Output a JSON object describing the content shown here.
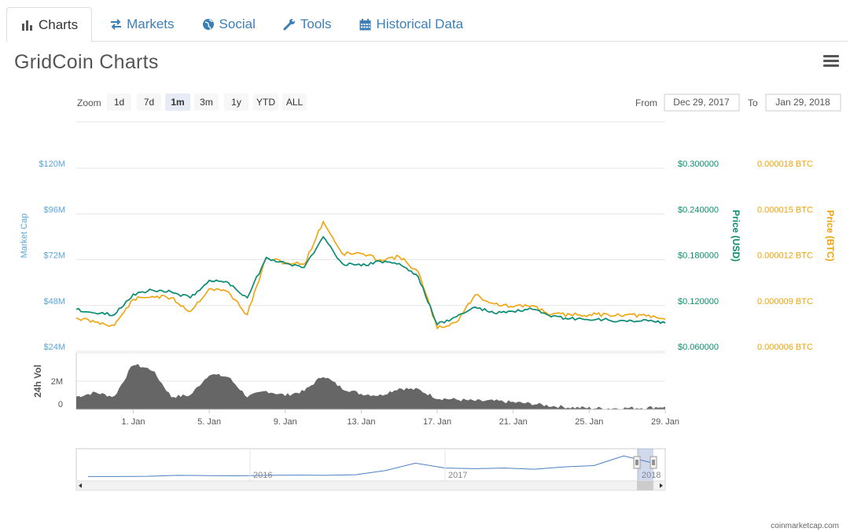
{
  "tabs": [
    {
      "label": "Charts",
      "icon": "bar-chart-icon",
      "active": true
    },
    {
      "label": "Markets",
      "icon": "exchange-arrows-icon",
      "active": false
    },
    {
      "label": "Social",
      "icon": "globe-icon",
      "active": false
    },
    {
      "label": "Tools",
      "icon": "wrench-icon",
      "active": false
    },
    {
      "label": "Historical Data",
      "icon": "calendar-icon",
      "active": false
    }
  ],
  "title": "GridCoin Charts",
  "menu_icon": "hamburger-menu-icon",
  "zoom": {
    "label": "Zoom",
    "buttons": [
      "1d",
      "7d",
      "1m",
      "3m",
      "1y",
      "YTD",
      "ALL"
    ],
    "selected": "1m"
  },
  "range": {
    "from_label": "From",
    "from_value": "Dec 29, 2017",
    "to_label": "To",
    "to_value": "Jan 29, 2018"
  },
  "credit": "coinmarketcap.com",
  "colors": {
    "market_cap": "#7cb5ec",
    "price_usd": "#0a8c6e",
    "price_btc": "#f0a30a",
    "volume": "#666666",
    "market_cap_axis": "#5aa6dc",
    "usd_axis": "#0a8c6e",
    "btc_axis": "#f0a30a"
  },
  "chart_data": {
    "type": "line",
    "title": "",
    "x_ticks": [
      "1. Jan",
      "5. Jan",
      "9. Jan",
      "13. Jan",
      "17. Jan",
      "21. Jan",
      "25. Jan",
      "29. Jan"
    ],
    "x_start": "2017-12-29",
    "x_end": "2018-01-29",
    "y_axes": {
      "market_cap": {
        "label": "Market Cap",
        "ticks": [
          "$24M",
          "$48M",
          "$72M",
          "$96M",
          "$120M"
        ],
        "range_millions": [
          24,
          120
        ]
      },
      "price_usd": {
        "label": "Price (USD)",
        "ticks": [
          "$0.060000",
          "$0.120000",
          "$0.180000",
          "$0.240000",
          "$0.300000"
        ],
        "range": [
          0.06,
          0.3
        ]
      },
      "price_btc": {
        "label": "Price (BTC)",
        "ticks": [
          "0.000006 BTC",
          "0.000009 BTC",
          "0.000012 BTC",
          "0.000015 BTC",
          "0.000018 BTC"
        ],
        "range": [
          6e-06,
          1.8e-05
        ]
      },
      "volume": {
        "label": "24h Vol",
        "ticks": [
          "0",
          "2M"
        ],
        "range_millions": [
          0,
          4
        ]
      }
    },
    "series": [
      {
        "name": "Market Cap",
        "unit": "USD millions",
        "points": [
          [
            "2017-12-29",
            46
          ],
          [
            "2017-12-30",
            44
          ],
          [
            "2017-12-31",
            43
          ],
          [
            "2018-01-01",
            54
          ],
          [
            "2018-01-02",
            56
          ],
          [
            "2018-01-03",
            55
          ],
          [
            "2018-01-04",
            52
          ],
          [
            "2018-01-05",
            61
          ],
          [
            "2018-01-06",
            60
          ],
          [
            "2018-01-07",
            52
          ],
          [
            "2018-01-08",
            73
          ],
          [
            "2018-01-09",
            70
          ],
          [
            "2018-01-10",
            68
          ],
          [
            "2018-01-11",
            84
          ],
          [
            "2018-01-12",
            70
          ],
          [
            "2018-01-13",
            69
          ],
          [
            "2018-01-14",
            71
          ],
          [
            "2018-01-15",
            70
          ],
          [
            "2018-01-16",
            63
          ],
          [
            "2018-01-17",
            38
          ],
          [
            "2018-01-18",
            42
          ],
          [
            "2018-01-19",
            47
          ],
          [
            "2018-01-20",
            44
          ],
          [
            "2018-01-21",
            45
          ],
          [
            "2018-01-22",
            46
          ],
          [
            "2018-01-23",
            42
          ],
          [
            "2018-01-24",
            41
          ],
          [
            "2018-01-25",
            40.5
          ],
          [
            "2018-01-26",
            40.5
          ],
          [
            "2018-01-27",
            39.5
          ],
          [
            "2018-01-28",
            40.5
          ],
          [
            "2018-01-29",
            39
          ]
        ]
      },
      {
        "name": "Price (USD)",
        "unit": "USD",
        "points": [
          [
            "2017-12-29",
            0.115
          ],
          [
            "2017-12-30",
            0.11
          ],
          [
            "2017-12-31",
            0.108
          ],
          [
            "2018-01-01",
            0.135
          ],
          [
            "2018-01-02",
            0.14
          ],
          [
            "2018-01-03",
            0.138
          ],
          [
            "2018-01-04",
            0.13
          ],
          [
            "2018-01-05",
            0.153
          ],
          [
            "2018-01-06",
            0.15
          ],
          [
            "2018-01-07",
            0.13
          ],
          [
            "2018-01-08",
            0.183
          ],
          [
            "2018-01-09",
            0.175
          ],
          [
            "2018-01-10",
            0.17
          ],
          [
            "2018-01-11",
            0.21
          ],
          [
            "2018-01-12",
            0.175
          ],
          [
            "2018-01-13",
            0.172
          ],
          [
            "2018-01-14",
            0.178
          ],
          [
            "2018-01-15",
            0.175
          ],
          [
            "2018-01-16",
            0.158
          ],
          [
            "2018-01-17",
            0.095
          ],
          [
            "2018-01-18",
            0.105
          ],
          [
            "2018-01-19",
            0.118
          ],
          [
            "2018-01-20",
            0.11
          ],
          [
            "2018-01-21",
            0.112
          ],
          [
            "2018-01-22",
            0.115
          ],
          [
            "2018-01-23",
            0.105
          ],
          [
            "2018-01-24",
            0.103
          ],
          [
            "2018-01-25",
            0.101
          ],
          [
            "2018-01-26",
            0.101
          ],
          [
            "2018-01-27",
            0.099
          ],
          [
            "2018-01-28",
            0.101
          ],
          [
            "2018-01-29",
            0.097
          ]
        ]
      },
      {
        "name": "Price (BTC)",
        "unit": "BTC",
        "points": [
          [
            "2017-12-29",
            8.2e-06
          ],
          [
            "2017-12-30",
            7.9e-06
          ],
          [
            "2017-12-31",
            7.7e-06
          ],
          [
            "2018-01-01",
            9.4e-06
          ],
          [
            "2018-01-02",
            9.6e-06
          ],
          [
            "2018-01-03",
            9.5e-06
          ],
          [
            "2018-01-04",
            8.6e-06
          ],
          [
            "2018-01-05",
            1.01e-05
          ],
          [
            "2018-01-06",
            9.9e-06
          ],
          [
            "2018-01-07",
            8.4e-06
          ],
          [
            "2018-01-08",
            1.21e-05
          ],
          [
            "2018-01-09",
            1.18e-05
          ],
          [
            "2018-01-10",
            1.17e-05
          ],
          [
            "2018-01-11",
            1.45e-05
          ],
          [
            "2018-01-12",
            1.24e-05
          ],
          [
            "2018-01-13",
            1.24e-05
          ],
          [
            "2018-01-14",
            1.2e-05
          ],
          [
            "2018-01-15",
            1.22e-05
          ],
          [
            "2018-01-16",
            1.12e-05
          ],
          [
            "2018-01-17",
            7.5e-06
          ],
          [
            "2018-01-18",
            7.9e-06
          ],
          [
            "2018-01-19",
            9.7e-06
          ],
          [
            "2018-01-20",
            9.1e-06
          ],
          [
            "2018-01-21",
            8.9e-06
          ],
          [
            "2018-01-22",
            9e-06
          ],
          [
            "2018-01-23",
            8.4e-06
          ],
          [
            "2018-01-24",
            8.4e-06
          ],
          [
            "2018-01-25",
            8.4e-06
          ],
          [
            "2018-01-26",
            8.4e-06
          ],
          [
            "2018-01-27",
            8.4e-06
          ],
          [
            "2018-01-28",
            8.3e-06
          ],
          [
            "2018-01-29",
            8.1e-06
          ]
        ]
      },
      {
        "name": "24h Vol",
        "unit": "USD millions",
        "points": [
          [
            "2017-12-29",
            0.9
          ],
          [
            "2017-12-30",
            1.2
          ],
          [
            "2017-12-31",
            0.9
          ],
          [
            "2018-01-01",
            3.2
          ],
          [
            "2018-01-02",
            2.8
          ],
          [
            "2018-01-03",
            0.9
          ],
          [
            "2018-01-04",
            1.0
          ],
          [
            "2018-01-05",
            2.5
          ],
          [
            "2018-01-06",
            2.3
          ],
          [
            "2018-01-07",
            0.9
          ],
          [
            "2018-01-08",
            1.3
          ],
          [
            "2018-01-09",
            1.0
          ],
          [
            "2018-01-10",
            1.3
          ],
          [
            "2018-01-11",
            2.4
          ],
          [
            "2018-01-12",
            1.5
          ],
          [
            "2018-01-13",
            1.1
          ],
          [
            "2018-01-14",
            1.0
          ],
          [
            "2018-01-15",
            1.5
          ],
          [
            "2018-01-16",
            1.4
          ],
          [
            "2018-01-17",
            0.8
          ],
          [
            "2018-01-18",
            0.7
          ],
          [
            "2018-01-19",
            0.6
          ],
          [
            "2018-01-20",
            0.6
          ],
          [
            "2018-01-21",
            0.5
          ],
          [
            "2018-01-22",
            0.4
          ],
          [
            "2018-01-23",
            0.25
          ],
          [
            "2018-01-24",
            0.15
          ],
          [
            "2018-01-25",
            0.1
          ],
          [
            "2018-01-26",
            0.08
          ],
          [
            "2018-01-27",
            0.1
          ],
          [
            "2018-01-28",
            0.12
          ],
          [
            "2018-01-29",
            0.2
          ]
        ]
      }
    ],
    "navigator": {
      "year_labels": [
        "2016",
        "2017",
        "2018"
      ],
      "history_usd": [
        0.01,
        0.01,
        0.012,
        0.02,
        0.018,
        0.016,
        0.02,
        0.022,
        0.02,
        0.025,
        0.06,
        0.12,
        0.08,
        0.075,
        0.08,
        0.07,
        0.09,
        0.1,
        0.18,
        0.12
      ]
    },
    "legend": {
      "placement": "bottom-center",
      "items": [
        "Market Cap",
        "Price (USD)",
        "Price (BTC)",
        "24h Vol"
      ]
    },
    "grid": true
  }
}
